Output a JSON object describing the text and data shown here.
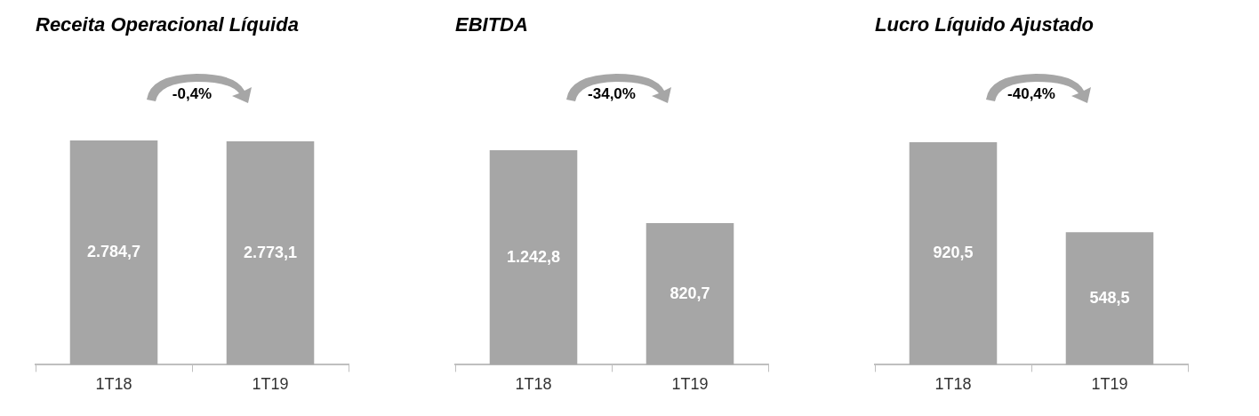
{
  "chart_data": [
    {
      "type": "bar",
      "title": "Receita Operacional Líquida",
      "categories": [
        "1T18",
        "1T19"
      ],
      "values": [
        2784.7,
        2773.1
      ],
      "value_labels": [
        "2.784,7",
        "2.773,1"
      ],
      "color": "#a6a6a6",
      "annotations": [
        "-0,4%"
      ]
    },
    {
      "type": "bar",
      "title": "EBITDA",
      "categories": [
        "1T18",
        "1T19"
      ],
      "values": [
        1242.8,
        820.7
      ],
      "value_labels": [
        "1.242,8",
        "820,7"
      ],
      "color": "#a6a6a6",
      "annotations": [
        "-34,0%"
      ]
    },
    {
      "type": "bar",
      "title": "Lucro Líquido Ajustado",
      "categories": [
        "1T18",
        "1T19"
      ],
      "values": [
        920.5,
        548.5
      ],
      "value_labels": [
        "920,5",
        "548,5"
      ],
      "color": "#a6a6a6",
      "annotations": [
        "-40,4%"
      ]
    }
  ]
}
